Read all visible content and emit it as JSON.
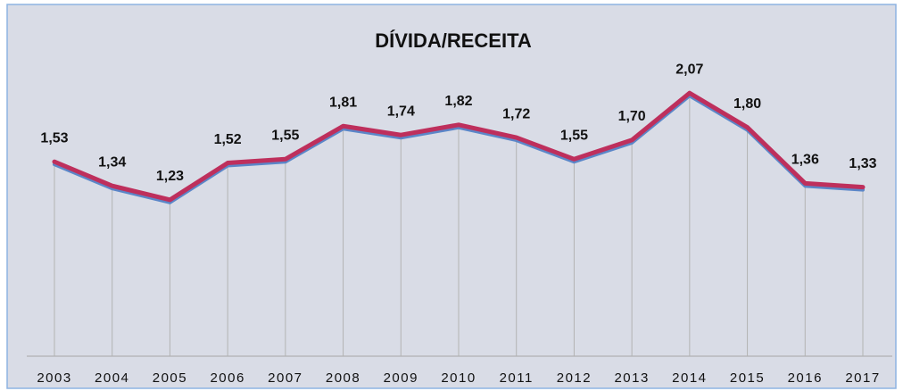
{
  "chart_data": {
    "type": "line",
    "title": "DÍVIDA/RECEITA",
    "categories": [
      "2003",
      "2004",
      "2005",
      "2006",
      "2007",
      "2008",
      "2009",
      "2010",
      "2011",
      "2012",
      "2013",
      "2014",
      "2015",
      "2016",
      "2017"
    ],
    "series": [
      {
        "name": "DÍVIDA/RECEITA",
        "color": "#be2f5c",
        "shadow_color": "#5b86c8",
        "values": [
          1.53,
          1.34,
          1.23,
          1.52,
          1.55,
          1.81,
          1.74,
          1.82,
          1.72,
          1.55,
          1.7,
          2.07,
          1.8,
          1.36,
          1.33
        ],
        "value_labels": [
          "1,53",
          "1,34",
          "1,23",
          "1,52",
          "1,55",
          "1,81",
          "1,74",
          "1,82",
          "1,72",
          "1,55",
          "1,70",
          "2,07",
          "1,80",
          "1,36",
          "1,33"
        ]
      }
    ],
    "ylim": [
      0,
      2.5
    ],
    "grid": false
  }
}
